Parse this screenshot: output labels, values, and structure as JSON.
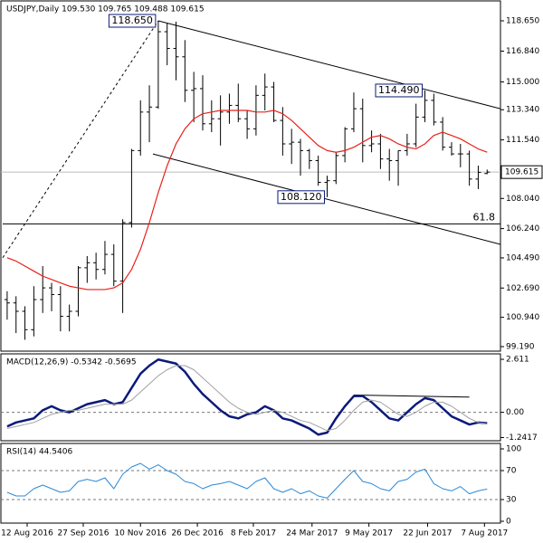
{
  "chart_data": [
    {
      "type": "ohlc",
      "title": "USDJPY,Daily  109.530 109.765 109.488 109.615",
      "xlim": [
        0,
        56
      ],
      "ylim": [
        98.92,
        119.84
      ],
      "yticks": [
        {
          "value": 118.65,
          "label": "118.650"
        },
        {
          "value": 116.84,
          "label": "116.840"
        },
        {
          "value": 115,
          "label": "115.000"
        },
        {
          "value": 113.34,
          "label": "113.340"
        },
        {
          "value": 111.54,
          "label": "111.540"
        },
        {
          "value": 108.04,
          "label": "108.040"
        },
        {
          "value": 106.24,
          "label": "106.240"
        },
        {
          "value": 104.49,
          "label": "104.490"
        },
        {
          "value": 102.69,
          "label": "102.690"
        },
        {
          "value": 100.94,
          "label": "100.940"
        },
        {
          "value": 99.19,
          "label": "99.190"
        }
      ],
      "last_price": {
        "value": 109.615,
        "label": "109.615"
      },
      "series": [
        {
          "color": "#000000",
          "values": [
            [
              102.0,
              102.5,
              100.8,
              101.8
            ],
            [
              101.8,
              102.2,
              100.0,
              101.3
            ],
            [
              101.3,
              101.6,
              99.6,
              100.2
            ],
            [
              100.2,
              102.8,
              99.8,
              102.0
            ],
            [
              102.0,
              104.0,
              101.2,
              102.7
            ],
            [
              102.7,
              103.0,
              101.3,
              102.3
            ],
            [
              102.3,
              102.8,
              100.1,
              101.0
            ],
            [
              101.0,
              101.7,
              100.1,
              101.3
            ],
            [
              101.3,
              104.0,
              101.0,
              103.9
            ],
            [
              103.9,
              104.6,
              103.0,
              104.2
            ],
            [
              104.2,
              104.8,
              103.2,
              103.8
            ],
            [
              103.8,
              105.5,
              103.5,
              104.7
            ],
            [
              104.7,
              105.3,
              102.8,
              103.1
            ],
            [
              103.1,
              106.8,
              101.2,
              106.6
            ],
            [
              106.6,
              111.0,
              106.3,
              110.9
            ],
            [
              110.9,
              113.9,
              110.6,
              113.2
            ],
            [
              113.2,
              114.8,
              111.4,
              113.5
            ],
            [
              113.5,
              118.65,
              113.4,
              118.0
            ],
            [
              118.0,
              118.5,
              116.0,
              117.0
            ],
            [
              117.0,
              118.6,
              115.1,
              116.5
            ],
            [
              116.5,
              117.5,
              113.8,
              114.5
            ],
            [
              114.5,
              115.6,
              112.6,
              114.6
            ],
            [
              114.6,
              115.4,
              112.1,
              112.5
            ],
            [
              112.5,
              113.9,
              112.0,
              112.8
            ],
            [
              112.8,
              114.2,
              111.2,
              113.2
            ],
            [
              113.2,
              114.3,
              112.5,
              113.6
            ],
            [
              113.6,
              114.9,
              112.6,
              112.8
            ],
            [
              112.8,
              113.3,
              111.6,
              112.2
            ],
            [
              112.2,
              114.8,
              111.8,
              114.2
            ],
            [
              114.2,
              115.5,
              113.3,
              114.7
            ],
            [
              114.7,
              115.0,
              112.6,
              112.7
            ],
            [
              112.7,
              113.5,
              110.6,
              111.3
            ],
            [
              111.3,
              112.2,
              110.1,
              111.4
            ],
            [
              111.4,
              111.6,
              109.4,
              110.9
            ],
            [
              110.9,
              111.0,
              109.8,
              110.3
            ],
            [
              110.3,
              110.6,
              108.8,
              109.0
            ],
            [
              109.0,
              109.4,
              108.12,
              109.1
            ],
            [
              109.1,
              110.8,
              108.9,
              110.6
            ],
            [
              110.6,
              112.3,
              110.2,
              112.2
            ],
            [
              112.2,
              114.37,
              112.0,
              113.4
            ],
            [
              113.4,
              114.0,
              110.2,
              111.2
            ],
            [
              111.2,
              112.1,
              110.8,
              111.3
            ],
            [
              111.3,
              111.9,
              109.8,
              110.4
            ],
            [
              110.4,
              111.0,
              109.1,
              110.3
            ],
            [
              110.3,
              110.9,
              108.8,
              110.9
            ],
            [
              110.9,
              111.9,
              110.6,
              111.3
            ],
            [
              111.3,
              113.7,
              111.1,
              112.9
            ],
            [
              112.9,
              114.49,
              112.6,
              113.9
            ],
            [
              113.9,
              114.3,
              112.4,
              112.6
            ],
            [
              112.6,
              112.9,
              110.9,
              111.1
            ],
            [
              111.1,
              111.4,
              110.6,
              110.7
            ],
            [
              110.7,
              111.3,
              109.9,
              110.7
            ],
            [
              110.7,
              110.9,
              108.8,
              109.2
            ],
            [
              109.2,
              110.0,
              108.6,
              109.6
            ],
            [
              109.53,
              109.765,
              109.488,
              109.615
            ]
          ]
        },
        {
          "color": "#e8211a",
          "values": [
            104.5,
            104.3,
            104.0,
            103.7,
            103.4,
            103.2,
            103.0,
            102.8,
            102.7,
            102.6,
            102.6,
            102.6,
            102.7,
            103.0,
            103.8,
            105.0,
            106.6,
            108.4,
            110.0,
            111.3,
            112.2,
            112.8,
            113.1,
            113.2,
            113.3,
            113.3,
            113.3,
            113.3,
            113.2,
            113.2,
            113.3,
            113.1,
            112.7,
            112.2,
            111.7,
            111.2,
            110.9,
            110.8,
            110.9,
            111.1,
            111.4,
            111.7,
            111.8,
            111.6,
            111.3,
            111.1,
            111.0,
            111.3,
            111.8,
            112.0,
            111.8,
            111.6,
            111.3,
            111.0,
            110.8
          ]
        }
      ],
      "lines": [
        {
          "from": [
            0,
            104.5
          ],
          "to": [
            17.5,
            118.65
          ],
          "style": "dotted"
        },
        {
          "from": [
            17.5,
            118.65
          ],
          "to": [
            56,
            113.4
          ],
          "style": "solid"
        },
        {
          "from": [
            16.9,
            110.7
          ],
          "to": [
            56,
            105.3
          ],
          "style": "solid"
        },
        {
          "from": [
            0,
            106.52
          ],
          "to": [
            56,
            106.52
          ],
          "style": "solid"
        }
      ],
      "annotations": [
        {
          "label": "118.650",
          "x": 17.5,
          "y": 118.65,
          "box": true
        },
        {
          "label": "114.490",
          "x": 47.5,
          "y": 114.49,
          "box": true
        },
        {
          "label": "108.120",
          "x": 36.5,
          "y": 108.12,
          "box": true
        },
        {
          "label": "61.8",
          "x": 56,
          "y": 106.52,
          "box": false
        }
      ]
    },
    {
      "type": "line",
      "title": "MACD(12,26,9) -0.5342 -0.5695",
      "xlim": [
        0,
        56
      ],
      "ylim": [
        -1.4,
        2.88
      ],
      "yticks": [
        2.611,
        {
          "value": 0,
          "label": "0.00"
        },
        -1.2417
      ],
      "levels": [
        0
      ],
      "series": [
        {
          "color": "#0a1a7a",
          "width": 2.5,
          "values": [
            -0.7,
            -0.5,
            -0.4,
            -0.3,
            0.1,
            0.3,
            0.1,
            0.0,
            0.2,
            0.4,
            0.5,
            0.6,
            0.4,
            0.5,
            1.2,
            1.9,
            2.3,
            2.6,
            2.5,
            2.4,
            2.0,
            1.4,
            0.9,
            0.5,
            0.1,
            -0.2,
            -0.3,
            -0.1,
            0.0,
            0.3,
            0.1,
            -0.3,
            -0.4,
            -0.6,
            -0.8,
            -1.1,
            -1.0,
            -0.3,
            0.3,
            0.8,
            0.8,
            0.5,
            0.1,
            -0.3,
            -0.4,
            0.0,
            0.4,
            0.7,
            0.6,
            0.2,
            -0.2,
            -0.4,
            -0.6,
            -0.5,
            -0.5342
          ]
        },
        {
          "color": "#a0a0a0",
          "width": 1,
          "values": [
            -0.8,
            -0.7,
            -0.6,
            -0.5,
            -0.3,
            -0.1,
            0.0,
            0.1,
            0.1,
            0.2,
            0.3,
            0.4,
            0.4,
            0.4,
            0.6,
            1.0,
            1.4,
            1.8,
            2.1,
            2.3,
            2.3,
            2.1,
            1.7,
            1.3,
            0.9,
            0.5,
            0.2,
            0.0,
            -0.1,
            0.0,
            0.1,
            0.0,
            -0.2,
            -0.4,
            -0.5,
            -0.7,
            -0.9,
            -0.8,
            -0.4,
            0.1,
            0.5,
            0.6,
            0.5,
            0.2,
            -0.1,
            -0.2,
            0.0,
            0.3,
            0.5,
            0.5,
            0.3,
            0.0,
            -0.3,
            -0.5,
            -0.5695
          ]
        }
      ],
      "lines": [
        {
          "from": [
            39.5,
            0.85
          ],
          "to": [
            52.5,
            0.75
          ],
          "style": "solid"
        }
      ]
    },
    {
      "type": "line",
      "title": "RSI(14) 44.5406",
      "xlim": [
        0,
        56
      ],
      "ylim": [
        -2.5,
        107.5
      ],
      "yticks": [
        100,
        70,
        30,
        0
      ],
      "levels": [
        70,
        30
      ],
      "xticks": [
        {
          "value": 2.75,
          "label": "12 Aug 2016"
        },
        {
          "value": 9.06,
          "label": "27 Sep 2016"
        },
        {
          "value": 15.5,
          "label": "10 Nov 2016"
        },
        {
          "value": 21.9,
          "label": "26 Dec 2016"
        },
        {
          "value": 28.2,
          "label": "8 Feb 2017"
        },
        {
          "value": 34.8,
          "label": "24 Mar 2017"
        },
        {
          "value": 41.2,
          "label": "9 May 2017"
        },
        {
          "value": 47.8,
          "label": "22 Jun 2017"
        },
        {
          "value": 54.2,
          "label": "7 Aug 2017"
        }
      ],
      "series": [
        {
          "color": "#2b8ad8",
          "width": 1,
          "values": [
            40,
            35,
            35,
            45,
            50,
            45,
            40,
            42,
            55,
            58,
            55,
            60,
            45,
            65,
            75,
            80,
            72,
            78,
            70,
            65,
            55,
            52,
            45,
            50,
            52,
            55,
            50,
            45,
            55,
            60,
            45,
            40,
            45,
            38,
            42,
            35,
            32,
            45,
            58,
            70,
            55,
            52,
            45,
            42,
            55,
            58,
            68,
            72,
            52,
            45,
            42,
            48,
            38,
            42,
            44.5406
          ]
        }
      ]
    }
  ]
}
